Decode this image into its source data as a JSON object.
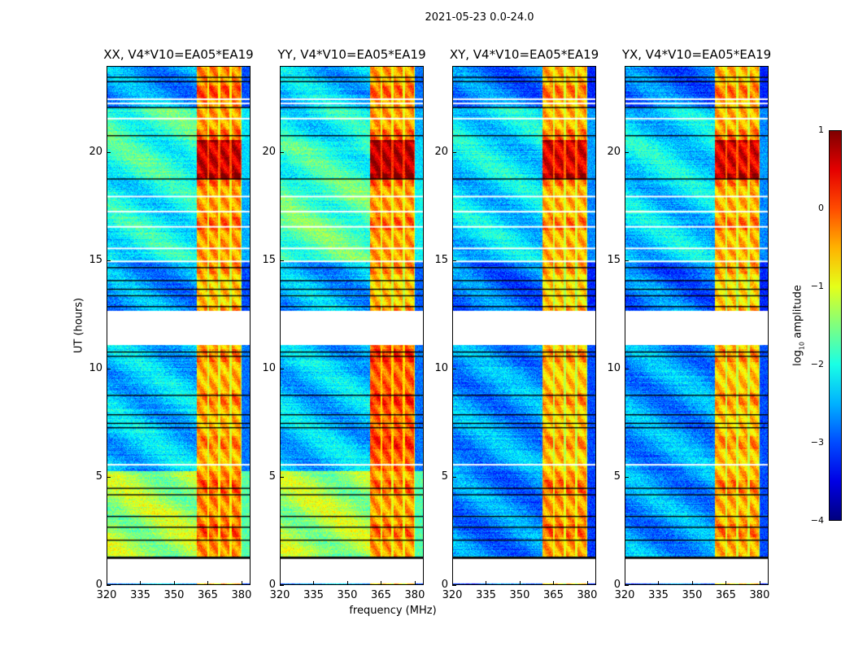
{
  "chart_data": {
    "type": "heatmap",
    "suptitle": "2021-05-23 0.0-24.0",
    "xlabel": "frequency (MHz)",
    "ylabel": "UT (hours)",
    "xlim": [
      320,
      384
    ],
    "ylim": [
      0,
      24
    ],
    "xticks": [
      "320",
      "335",
      "350",
      "365",
      "380"
    ],
    "xtick_values": [
      320,
      335,
      350,
      365,
      380
    ],
    "yticks": [
      "0",
      "5",
      "10",
      "15",
      "20"
    ],
    "ytick_values": [
      0,
      5,
      10,
      15,
      20
    ],
    "colorbar": {
      "label_main": "log",
      "label_sub": "10",
      "label_rest": " amplitude",
      "range": [
        -4,
        1
      ],
      "colormap": "jet",
      "ticks": [
        "1",
        "0",
        "−1",
        "−2",
        "−3",
        "−4"
      ],
      "tick_values": [
        1,
        0,
        -1,
        -2,
        -3,
        -4
      ]
    },
    "rfi_subbands_mhz": [
      [
        360,
        364.5
      ],
      [
        365.5,
        369.5
      ],
      [
        370.5,
        374.5
      ],
      [
        375.5,
        379.5
      ]
    ],
    "no_data_hours": [
      [
        0.1,
        1.25
      ],
      [
        11.1,
        12.7
      ]
    ],
    "flagged_black_hours": [
      1.3,
      2.1,
      2.7,
      3.2,
      4.2,
      4.5,
      7.3,
      7.5,
      7.9,
      8.8,
      10.6,
      10.8,
      12.9,
      13.4,
      13.7,
      14.1,
      14.7,
      18.8,
      20.8,
      22.1,
      23.3,
      23.5
    ],
    "flagged_white_hours": [
      5.6,
      15.0,
      15.6,
      16.6,
      17.3,
      18.0,
      21.6,
      22.3,
      22.5
    ],
    "panels": [
      {
        "title": "XX, V4*V10=EA05*EA19",
        "segments": [
          [
            0,
            0.1,
            -2.6,
            -0.6
          ],
          [
            1.35,
            5.3,
            -1.3,
            -0.3
          ],
          [
            5.3,
            11.1,
            -2.4,
            -0.5
          ],
          [
            12.7,
            15,
            -2.6,
            -0.6
          ],
          [
            15,
            18.8,
            -2.1,
            -0.4
          ],
          [
            18.8,
            20.6,
            -1.9,
            0.6
          ],
          [
            20.6,
            22.1,
            -1.8,
            -0.4
          ],
          [
            22.1,
            24,
            -2.6,
            -0.3
          ]
        ]
      },
      {
        "title": "YY, V4*V10=EA05*EA19",
        "segments": [
          [
            0,
            0.1,
            -2.6,
            -0.6
          ],
          [
            1.35,
            5.3,
            -1.3,
            -0.4
          ],
          [
            5.3,
            11.1,
            -2.4,
            -0.1
          ],
          [
            12.7,
            15,
            -2.5,
            -0.6
          ],
          [
            15,
            18.8,
            -1.7,
            -0.4
          ],
          [
            18.8,
            20.6,
            -1.9,
            0.7
          ],
          [
            20.6,
            22.1,
            -2.1,
            -0.4
          ],
          [
            22.1,
            24,
            -2.4,
            -0.4
          ]
        ]
      },
      {
        "title": "XY, V4*V10=EA05*EA19",
        "segments": [
          [
            0,
            0.1,
            -2.8,
            -0.7
          ],
          [
            1.35,
            5.3,
            -2.7,
            -0.4
          ],
          [
            5.3,
            11.1,
            -2.6,
            -0.6
          ],
          [
            12.7,
            15,
            -2.8,
            -0.7
          ],
          [
            15,
            18.8,
            -2.3,
            -0.5
          ],
          [
            18.8,
            20.6,
            -2.2,
            0.5
          ],
          [
            20.6,
            22.1,
            -2.2,
            -0.5
          ],
          [
            22.1,
            24,
            -2.8,
            -0.5
          ]
        ]
      },
      {
        "title": "YX, V4*V10=EA05*EA19",
        "segments": [
          [
            0,
            0.1,
            -2.8,
            -0.7
          ],
          [
            1.35,
            5.3,
            -2.6,
            -0.5
          ],
          [
            5.3,
            11.1,
            -2.6,
            -0.6
          ],
          [
            12.7,
            15,
            -2.8,
            -0.7
          ],
          [
            15,
            18.8,
            -2.3,
            -0.5
          ],
          [
            18.8,
            20.6,
            -2.2,
            0.5
          ],
          [
            20.6,
            22.1,
            -2.3,
            -0.5
          ],
          [
            22.1,
            24,
            -2.8,
            -0.5
          ]
        ]
      }
    ]
  }
}
